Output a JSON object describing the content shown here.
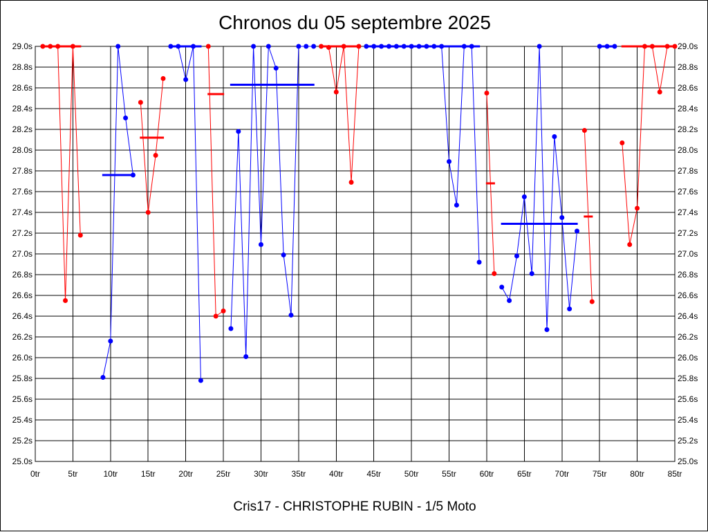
{
  "chart_data": {
    "type": "line",
    "title": "Chronos du 05 septembre 2025",
    "subtitle": "Cris17 - CHRISTOPHE RUBIN - 1/5 Moto",
    "xlim": [
      0,
      85
    ],
    "ylim": [
      25.0,
      29.0
    ],
    "xticks": [
      0,
      5,
      10,
      15,
      20,
      25,
      30,
      35,
      40,
      45,
      50,
      55,
      60,
      65,
      70,
      75,
      80,
      85
    ],
    "xtick_suffix": "tr",
    "yticks": [
      25.0,
      25.2,
      25.4,
      25.6,
      25.8,
      26.0,
      26.2,
      26.4,
      26.6,
      26.8,
      27.0,
      27.2,
      27.4,
      27.6,
      27.8,
      28.0,
      28.2,
      28.4,
      28.6,
      28.8,
      29.0
    ],
    "ytick_suffix": "s",
    "ytick_decimals": 1,
    "grid": true,
    "colors": {
      "red": "#ff0000",
      "blue": "#0000ff"
    },
    "segments": [
      {
        "color": "red",
        "points": [
          [
            1,
            29.0
          ],
          [
            2,
            29.0
          ],
          [
            3,
            29.0
          ],
          [
            4,
            26.55
          ],
          [
            5,
            29.0
          ],
          [
            6,
            27.18
          ]
        ],
        "mean": [
          [
            1,
            6
          ],
          29.0
        ]
      },
      {
        "color": "blue",
        "points": [
          [
            9,
            25.81
          ],
          [
            10,
            26.16
          ],
          [
            11,
            29.0
          ],
          [
            12,
            28.31
          ],
          [
            13,
            27.76
          ]
        ],
        "mean": [
          [
            9,
            13
          ],
          27.76
        ]
      },
      {
        "color": "red",
        "points": [
          [
            14,
            28.46
          ],
          [
            15,
            27.4
          ],
          [
            16,
            27.95
          ],
          [
            17,
            28.69
          ]
        ],
        "mean": [
          [
            14,
            17
          ],
          28.12
        ]
      },
      {
        "color": "blue",
        "points": [
          [
            18,
            29.0
          ],
          [
            19,
            29.0
          ],
          [
            20,
            28.68
          ],
          [
            21,
            29.0
          ],
          [
            22,
            25.78
          ]
        ],
        "mean": [
          [
            18,
            22
          ],
          29.0
        ]
      },
      {
        "color": "red",
        "points": [
          [
            23,
            29.0
          ],
          [
            24,
            26.4
          ],
          [
            25,
            26.45
          ]
        ],
        "mean": [
          [
            23,
            25
          ],
          28.54
        ]
      },
      {
        "color": "blue",
        "points": [
          [
            26,
            26.28
          ],
          [
            27,
            28.18
          ],
          [
            28,
            26.01
          ],
          [
            29,
            29.0
          ],
          [
            30,
            27.09
          ],
          [
            31,
            29.0
          ],
          [
            32,
            28.79
          ],
          [
            33,
            26.99
          ],
          [
            34,
            26.41
          ],
          [
            35,
            29.0
          ],
          [
            36,
            29.0
          ],
          [
            37,
            29.0
          ]
        ],
        "mean": [
          [
            26,
            37
          ],
          28.63
        ]
      },
      {
        "color": "red",
        "points": [
          [
            38,
            29.0
          ],
          [
            39,
            28.99
          ],
          [
            40,
            28.56
          ],
          [
            41,
            29.0
          ],
          [
            42,
            27.69
          ],
          [
            43,
            29.0
          ]
        ],
        "mean": [
          [
            38,
            43
          ],
          29.0
        ]
      },
      {
        "color": "blue",
        "points": [
          [
            44,
            29.0
          ],
          [
            45,
            29.0
          ],
          [
            46,
            29.0
          ],
          [
            47,
            29.0
          ],
          [
            48,
            29.0
          ],
          [
            49,
            29.0
          ],
          [
            50,
            29.0
          ],
          [
            51,
            29.0
          ],
          [
            52,
            29.0
          ],
          [
            53,
            29.0
          ],
          [
            54,
            29.0
          ],
          [
            55,
            27.89
          ],
          [
            56,
            27.47
          ],
          [
            57,
            29.0
          ],
          [
            58,
            29.0
          ],
          [
            59,
            26.92
          ]
        ],
        "mean": [
          [
            44,
            59
          ],
          29.0
        ]
      },
      {
        "color": "red",
        "points": [
          [
            60,
            28.55
          ],
          [
            61,
            26.81
          ]
        ],
        "mean": [
          [
            60,
            61
          ],
          27.68
        ]
      },
      {
        "color": "blue",
        "points": [
          [
            62,
            26.68
          ],
          [
            63,
            26.55
          ],
          [
            64,
            26.98
          ],
          [
            65,
            27.55
          ],
          [
            66,
            26.81
          ],
          [
            67,
            29.0
          ],
          [
            68,
            26.27
          ],
          [
            69,
            28.13
          ],
          [
            70,
            27.35
          ],
          [
            71,
            26.47
          ],
          [
            72,
            27.22
          ]
        ],
        "mean": [
          [
            62,
            72
          ],
          27.29
        ]
      },
      {
        "color": "red",
        "points": [
          [
            73,
            28.19
          ],
          [
            74,
            26.54
          ]
        ],
        "mean": [
          [
            73,
            74
          ],
          27.36
        ]
      },
      {
        "color": "blue",
        "points": [
          [
            75,
            29.0
          ],
          [
            76,
            29.0
          ],
          [
            77,
            29.0
          ]
        ],
        "mean": [
          [
            75,
            77
          ],
          29.0
        ]
      },
      {
        "color": "red",
        "points": [
          [
            78,
            28.07
          ],
          [
            79,
            27.09
          ],
          [
            80,
            27.44
          ],
          [
            81,
            29.0
          ],
          [
            82,
            29.0
          ],
          [
            83,
            28.56
          ],
          [
            84,
            29.0
          ],
          [
            85,
            29.0
          ]
        ],
        "mean": [
          [
            78,
            85
          ],
          29.0
        ]
      }
    ]
  }
}
